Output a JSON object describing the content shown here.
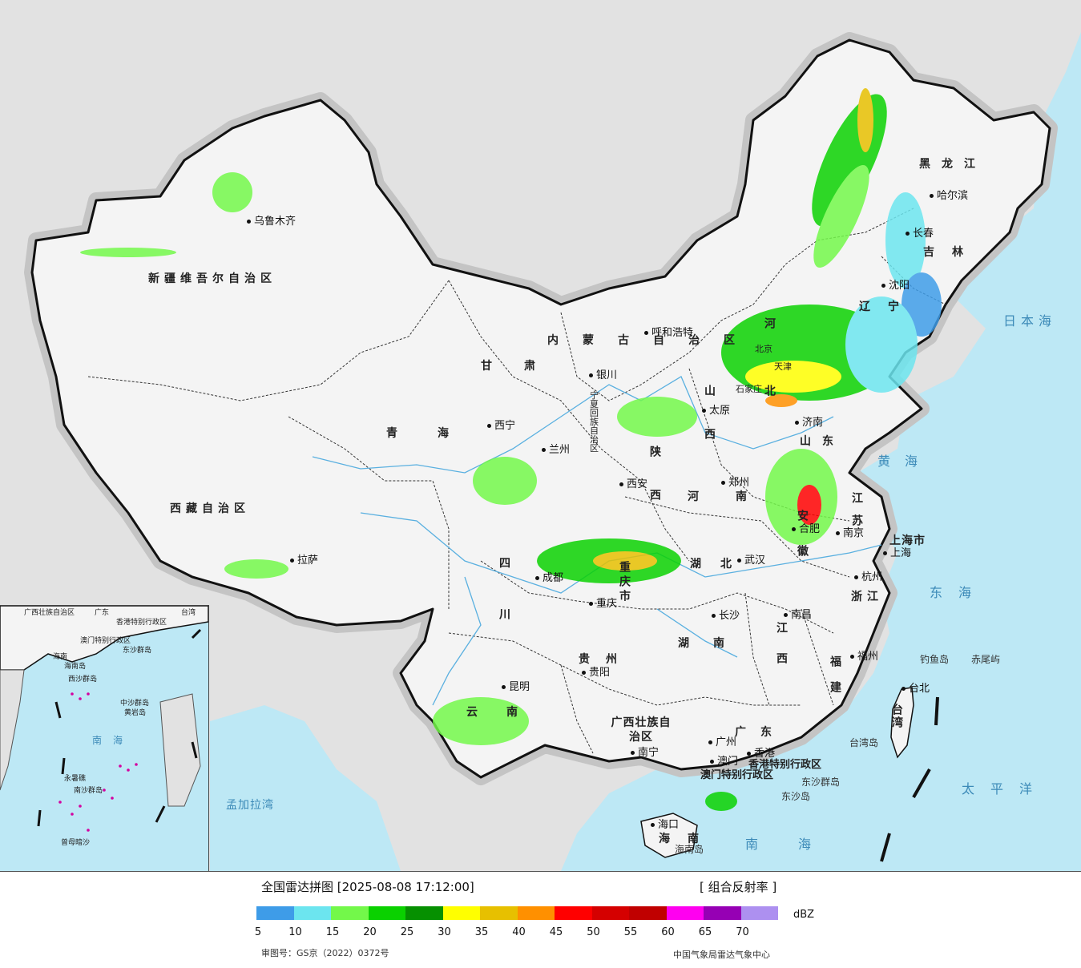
{
  "map": {
    "provinces": [
      {
        "name": "新疆维吾尔自治区",
        "key": "xinjiang"
      },
      {
        "name": "西藏自治区",
        "key": "xizang"
      },
      {
        "name": "青海",
        "key": "qinghai"
      },
      {
        "name": "甘肃",
        "key": "gansu"
      },
      {
        "name": "内蒙古自治区",
        "key": "neimenggu"
      },
      {
        "name": "黑龙江",
        "key": "heilongjiang"
      },
      {
        "name": "吉林",
        "key": "jilin"
      },
      {
        "name": "辽宁",
        "key": "liaoning"
      },
      {
        "name": "河北",
        "key": "hebei"
      },
      {
        "name": "山西",
        "key": "shanxi"
      },
      {
        "name": "陕西",
        "key": "shaanxi"
      },
      {
        "name": "河南",
        "key": "henan"
      },
      {
        "name": "山东",
        "key": "shandong"
      },
      {
        "name": "江苏",
        "key": "jiangsu"
      },
      {
        "name": "安徽",
        "key": "anhui"
      },
      {
        "name": "湖北",
        "key": "hubei"
      },
      {
        "name": "四川",
        "key": "sichuan"
      },
      {
        "name": "重庆市",
        "key": "chongqing"
      },
      {
        "name": "贵州",
        "key": "guizhou"
      },
      {
        "name": "云南",
        "key": "yunnan"
      },
      {
        "name": "湖南",
        "key": "hunan"
      },
      {
        "name": "江西",
        "key": "jiangxi"
      },
      {
        "name": "浙江",
        "key": "zhejiang"
      },
      {
        "name": "福建",
        "key": "fujian"
      },
      {
        "name": "广东",
        "key": "guangdong"
      },
      {
        "name": "广西壮族自治区",
        "key": "guangxi"
      },
      {
        "name": "海南",
        "key": "hainan"
      },
      {
        "name": "台湾",
        "key": "taiwan"
      },
      {
        "name": "上海市",
        "key": "shanghai"
      },
      {
        "name": "宁夏回族自治区",
        "key": "ningxia"
      },
      {
        "name": "香港特别行政区",
        "key": "hongkong"
      },
      {
        "name": "澳门特别行政区",
        "key": "macau"
      }
    ],
    "cities": [
      "乌鲁木齐",
      "哈尔滨",
      "长春",
      "沈阳",
      "呼和浩特",
      "银川",
      "西宁",
      "兰州",
      "西安",
      "郑州",
      "太原",
      "济南",
      "南京",
      "合肥",
      "上海",
      "杭州",
      "武汉",
      "成都",
      "重庆",
      "长沙",
      "南昌",
      "贵阳",
      "昆明",
      "南宁",
      "广州",
      "香港",
      "澳门",
      "福州",
      "台北",
      "海口",
      "拉萨",
      "北京",
      "天津",
      "石家庄"
    ],
    "seas": [
      "日本海",
      "黄海",
      "东海",
      "太平洋",
      "南海"
    ],
    "neighbors": [
      "孟加拉湾"
    ],
    "islands": [
      "钓鱼岛",
      "赤尾屿",
      "台湾岛",
      "东沙群岛",
      "东沙岛",
      "海南岛"
    ],
    "inset_labels": [
      "广西壮族自治区",
      "广东",
      "香港特别行政区",
      "澳门特别行政区",
      "台湾",
      "海南",
      "海南岛",
      "东沙群岛",
      "西沙群岛",
      "中沙群岛",
      "黄岩岛",
      "南海",
      "永暑礁",
      "南沙群岛",
      "曾母暗沙"
    ]
  },
  "legend": {
    "title": "全国雷达拼图 [2025-08-08 17:12:00]",
    "product": "[ 组合反射率 ]",
    "unit": "dBZ",
    "colors": [
      "#3e9ce8",
      "#6ce5ef",
      "#73f84a",
      "#0ad100",
      "#069001",
      "#ffff00",
      "#e7c000",
      "#ff9000",
      "#ff0000",
      "#d50000",
      "#c00000",
      "#ff00f0",
      "#9600b4",
      "#ad90f0"
    ],
    "ticks": [
      "5",
      "10",
      "15",
      "20",
      "25",
      "30",
      "35",
      "40",
      "45",
      "50",
      "55",
      "60",
      "65",
      "70"
    ],
    "approval": "审图号：GS京（2022）0372号",
    "source": "中国气象局雷达气象中心"
  }
}
